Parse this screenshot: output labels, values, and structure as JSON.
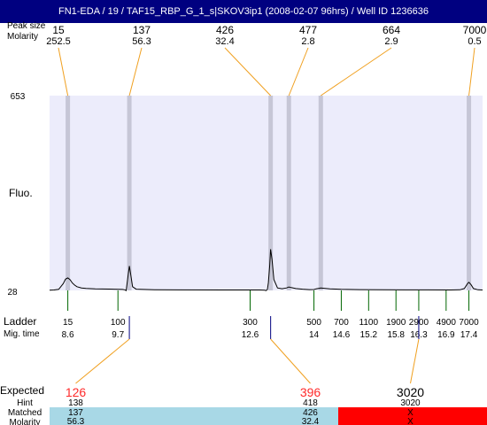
{
  "header": {
    "title": "FN1-EDA / 19 / TAF15_RBP_G_1_s|SKOV3ip1 (2008-02-07 96hrs) / Well ID 1236636"
  },
  "chart_data": {
    "type": "line",
    "ylabel": "Fluo.",
    "y_ticks": [
      "653",
      "28"
    ],
    "ylim": [
      28,
      653
    ],
    "mig_xlim": [
      8.2,
      17.7
    ],
    "row_labels": {
      "peak_size": "Peak size",
      "molarity_top": "Molarity",
      "ladder": "Ladder",
      "mig_time": "Mig. time",
      "expected": "Expected",
      "hint": "Hint",
      "matched": "Matched",
      "molarity_bottom": "Molarity"
    },
    "top_peaks": [
      {
        "size": "15",
        "molarity": "252.5",
        "mig": 8.6
      },
      {
        "size": "137",
        "molarity": "56.3",
        "mig": 9.95
      },
      {
        "size": "426",
        "molarity": "32.4",
        "mig": 13.05
      },
      {
        "size": "477",
        "molarity": "2.8",
        "mig": 13.45
      },
      {
        "size": "664",
        "molarity": "2.9",
        "mig": 14.15
      },
      {
        "size": "7000",
        "molarity": "0.5",
        "mig": 17.4
      }
    ],
    "ladder": [
      {
        "size": "15",
        "mig_label": "8.6",
        "mig": 8.6
      },
      {
        "size": "100",
        "mig_label": "9.7",
        "mig": 9.7
      },
      {
        "size": "300",
        "mig_label": "12.6",
        "mig": 12.6
      },
      {
        "size": "500",
        "mig_label": "14",
        "mig": 14.0
      },
      {
        "size": "700",
        "mig_label": "14.6",
        "mig": 14.6
      },
      {
        "size": "1100",
        "mig_label": "15.2",
        "mig": 15.2
      },
      {
        "size": "1900",
        "mig_label": "15.8",
        "mig": 15.8
      },
      {
        "size": "2900",
        "mig_label": "16.3",
        "mig": 16.3
      },
      {
        "size": "4900",
        "mig_label": "16.9",
        "mig": 16.9
      },
      {
        "size": "7000",
        "mig_label": "17.4",
        "mig": 17.4
      }
    ],
    "expected": [
      {
        "size": "126",
        "hint": "138",
        "matched": "137",
        "molarity": "56.3",
        "mig": 9.95,
        "status": "match",
        "color": "#ff2a2a"
      },
      {
        "size": "396",
        "hint": "418",
        "matched": "426",
        "molarity": "32.4",
        "mig": 13.05,
        "status": "match",
        "color": "#ff2a2a"
      },
      {
        "size": "3020",
        "hint": "3020",
        "matched": "X",
        "molarity": "X",
        "mig": 16.3,
        "status": "no-match",
        "color": "#000000"
      }
    ],
    "trace": [
      [
        8.2,
        0.5
      ],
      [
        8.3,
        1.5
      ],
      [
        8.4,
        3.5
      ],
      [
        8.5,
        22
      ],
      [
        8.55,
        36
      ],
      [
        8.6,
        40
      ],
      [
        8.65,
        34
      ],
      [
        8.7,
        24
      ],
      [
        8.75,
        17
      ],
      [
        8.8,
        12
      ],
      [
        8.9,
        8
      ],
      [
        9.0,
        6.5
      ],
      [
        9.2,
        5
      ],
      [
        9.5,
        4.2
      ],
      [
        9.7,
        3.6
      ],
      [
        9.8,
        3
      ],
      [
        9.85,
        2
      ],
      [
        9.88,
        -0.5
      ],
      [
        9.9,
        22
      ],
      [
        9.93,
        55
      ],
      [
        9.95,
        78
      ],
      [
        9.98,
        52
      ],
      [
        10.02,
        12
      ],
      [
        10.1,
        4
      ],
      [
        10.5,
        2.2
      ],
      [
        11,
        1.6
      ],
      [
        12,
        1.4
      ],
      [
        12.8,
        1.3
      ],
      [
        12.92,
        0.5
      ],
      [
        12.95,
        -0.5
      ],
      [
        12.98,
        3
      ],
      [
        13.0,
        25
      ],
      [
        13.03,
        80
      ],
      [
        13.05,
        132
      ],
      [
        13.08,
        100
      ],
      [
        13.12,
        35
      ],
      [
        13.2,
        8
      ],
      [
        13.3,
        5.5
      ],
      [
        13.4,
        8
      ],
      [
        13.45,
        11
      ],
      [
        13.5,
        9
      ],
      [
        13.6,
        6
      ],
      [
        13.75,
        4
      ],
      [
        13.9,
        2.6
      ],
      [
        14.0,
        2.7
      ],
      [
        14.05,
        5
      ],
      [
        14.15,
        8
      ],
      [
        14.25,
        6.5
      ],
      [
        14.35,
        5
      ],
      [
        14.6,
        3.5
      ],
      [
        15,
        2.5
      ],
      [
        15.5,
        2.2
      ],
      [
        16,
        1.8
      ],
      [
        16.5,
        1.6
      ],
      [
        17,
        1.5
      ],
      [
        17.2,
        2
      ],
      [
        17.3,
        6
      ],
      [
        17.37,
        22
      ],
      [
        17.4,
        26
      ],
      [
        17.45,
        18
      ],
      [
        17.5,
        6
      ],
      [
        17.6,
        2
      ],
      [
        17.7,
        1.5
      ]
    ],
    "grid": false,
    "colors": {
      "plot_bg": "#ececfb",
      "marker_band": "#c6c6d6",
      "connector": "#f0a020",
      "ladder_tick": "#006600",
      "hint_tick": "#000080",
      "trace": "#000000",
      "matched_bg": "#a8d8e6",
      "nomatch_bg": "#ff0000"
    }
  }
}
